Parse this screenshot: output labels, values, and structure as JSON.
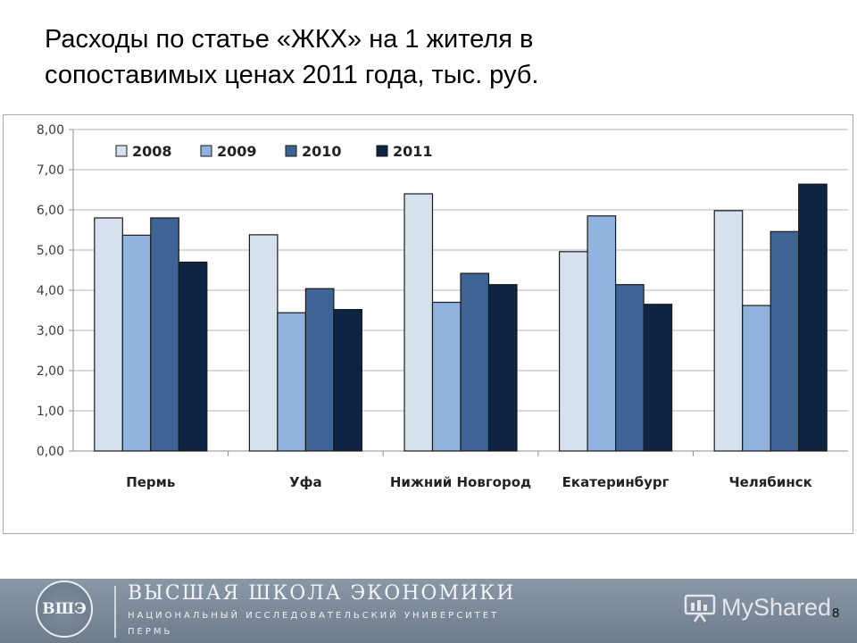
{
  "slide": {
    "title_line1": "Расходы по статье «ЖКХ» на 1 жителя в",
    "title_line2": "сопоставимых ценах 2011 года, тыс. руб.",
    "page_number": "8"
  },
  "footer": {
    "org_name": "ВЫСШАЯ ШКОЛА ЭКОНОМИКИ",
    "org_subtitle": "НАЦИОНАЛЬНЫЙ ИССЛЕДОВАТЕЛЬСКИЙ УНИВЕРСИТЕТ",
    "org_city": "ПЕРМЬ",
    "logo_mark": "ВШЭ",
    "watermark": "MyShared"
  },
  "chart_data": {
    "type": "bar",
    "title": "",
    "xlabel": "",
    "ylabel": "",
    "categories": [
      "Пермь",
      "Уфа",
      "Нижний Новгород",
      "Екатеринбург",
      "Челябинск"
    ],
    "series": [
      {
        "name": "2008",
        "color": "#d6e1ee",
        "values": [
          5.8,
          5.38,
          6.4,
          4.96,
          5.98
        ]
      },
      {
        "name": "2009",
        "color": "#8fb3de",
        "values": [
          5.37,
          3.44,
          3.7,
          5.85,
          3.62
        ]
      },
      {
        "name": "2010",
        "color": "#3d6494",
        "values": [
          5.8,
          4.04,
          4.42,
          4.14,
          5.46
        ]
      },
      {
        "name": "2011",
        "color": "#0d2443",
        "values": [
          4.7,
          3.52,
          4.14,
          3.65,
          6.64
        ]
      }
    ],
    "ylim": [
      0,
      8
    ],
    "yticks": [
      "0,00",
      "1,00",
      "2,00",
      "3,00",
      "4,00",
      "5,00",
      "6,00",
      "7,00",
      "8,00"
    ],
    "grid": true,
    "legend_position": "top-left"
  }
}
